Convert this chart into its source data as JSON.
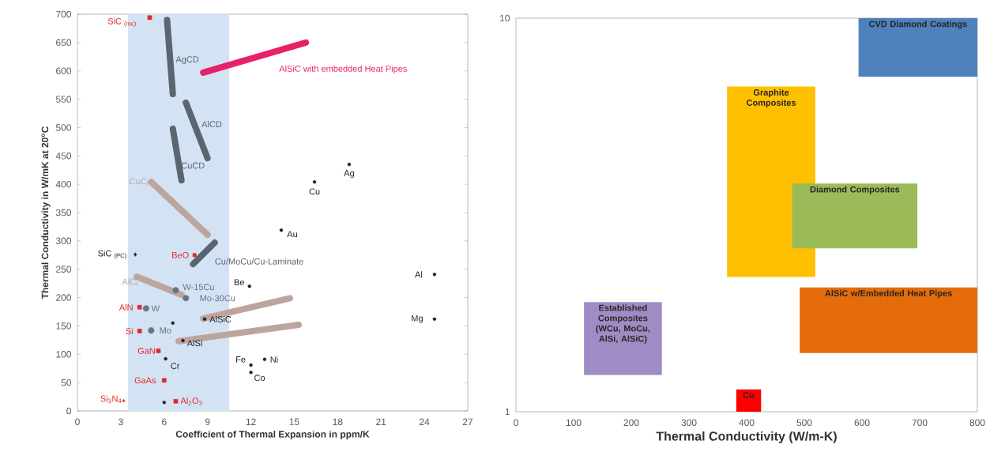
{
  "chart_data": [
    {
      "type": "scatter",
      "xlabel": "Coefficient of Thermal Expansion in ppm/K",
      "ylabel": "Thermal Conductivity in W/mK at 20$^{o}$C",
      "xlim": [
        0,
        27
      ],
      "ylim": [
        0,
        700
      ],
      "xticks": [
        0,
        3,
        6,
        9,
        12,
        15,
        18,
        21,
        24,
        27
      ],
      "yticks": [
        0,
        50,
        100,
        150,
        200,
        250,
        300,
        350,
        400,
        450,
        500,
        550,
        600,
        650,
        700
      ],
      "bands": [
        {
          "axis": "x",
          "from": 3.5,
          "to": 10.5,
          "color": "#d3e3f4"
        }
      ],
      "series": [
        {
          "type": "line",
          "name": "AgCD",
          "color": "#5b6570",
          "x": [
            6.2,
            6.6
          ],
          "values": [
            690,
            559
          ]
        },
        {
          "type": "line",
          "name": "AlSiC with embedded Heat Pipes",
          "color": "#e8206a",
          "x": [
            8.7,
            15.8
          ],
          "values": [
            597,
            650
          ]
        },
        {
          "type": "line",
          "name": "AlCD",
          "color": "#5b6570",
          "x": [
            7.5,
            9.0
          ],
          "values": [
            544,
            446
          ]
        },
        {
          "type": "line",
          "name": "CuCD",
          "color": "#5b6570",
          "x": [
            6.6,
            7.2
          ],
          "values": [
            498,
            407
          ]
        },
        {
          "type": "line",
          "name": "CuC$_{f}$",
          "color": "#bda59d",
          "x": [
            5.1,
            9.0
          ],
          "values": [
            404,
            311
          ]
        },
        {
          "type": "line",
          "name": "Cu/MoCu/Cu-Laminate",
          "color": "#5b6570",
          "x": [
            8.0,
            9.5
          ],
          "values": [
            259,
            297
          ]
        },
        {
          "type": "line",
          "name": "AlC$_{f}$",
          "color": "#bda59d",
          "x": [
            4.1,
            7.2
          ],
          "values": [
            237,
            205
          ]
        },
        {
          "type": "line",
          "color": "#bda59d",
          "x": [
            8.7,
            14.7
          ],
          "values": [
            163,
            199
          ]
        },
        {
          "type": "line",
          "color": "#bda59d",
          "x": [
            7.0,
            15.3
          ],
          "values": [
            123,
            152
          ]
        },
        {
          "type": "scatter",
          "name": "SiC $_{(mc)}$",
          "marker": "square",
          "color": "#e02828",
          "x": [
            5.0
          ],
          "values": [
            694
          ]
        },
        {
          "type": "scatter",
          "name": "BeO",
          "marker": "square",
          "color": "#e02828",
          "x": [
            8.1
          ],
          "values": [
            275
          ]
        },
        {
          "type": "scatter",
          "name": "AlN",
          "marker": "square",
          "color": "#e02828",
          "x": [
            4.3
          ],
          "values": [
            183
          ]
        },
        {
          "type": "scatter",
          "name": "Si",
          "marker": "square",
          "color": "#e02828",
          "x": [
            4.3
          ],
          "values": [
            141
          ]
        },
        {
          "type": "scatter",
          "name": "GaN",
          "marker": "square",
          "color": "#e02828",
          "x": [
            5.6
          ],
          "values": [
            106
          ]
        },
        {
          "type": "scatter",
          "name": "GaAs",
          "marker": "square",
          "color": "#e02828",
          "x": [
            6.0
          ],
          "values": [
            54
          ]
        },
        {
          "type": "scatter",
          "name": "Al$_{2}$O$_{3}$",
          "marker": "square",
          "color": "#e02828",
          "x": [
            6.8
          ],
          "values": [
            17
          ]
        },
        {
          "type": "scatter",
          "name": "Si$_{3}$N$_{4}$",
          "marker": "triangle",
          "color": "#e02828",
          "x": [
            3.2
          ],
          "values": [
            18
          ]
        },
        {
          "type": "scatter",
          "name": "SiC $_{(PC)}$",
          "marker": "diamond",
          "color": "#222222",
          "x": [
            4.0
          ],
          "values": [
            276
          ]
        },
        {
          "type": "scatter",
          "name": "W-15Cu",
          "marker": "circle",
          "color": "#6a7480",
          "x": [
            6.8
          ],
          "values": [
            213
          ]
        },
        {
          "type": "scatter",
          "name": "Mo-30Cu",
          "marker": "circle",
          "color": "#6a7480",
          "x": [
            7.5
          ],
          "values": [
            199
          ]
        },
        {
          "type": "scatter",
          "name": "W",
          "marker": "circle",
          "color": "#6a7480",
          "x": [
            4.75
          ],
          "values": [
            181
          ]
        },
        {
          "type": "scatter",
          "name": "Mo",
          "marker": "circle",
          "color": "#6a7480",
          "x": [
            5.1
          ],
          "values": [
            142
          ]
        },
        {
          "type": "scatter",
          "name": "Cu",
          "marker": "circle",
          "color": "#222222",
          "x": [
            16.4
          ],
          "values": [
            404
          ]
        },
        {
          "type": "scatter",
          "name": "Ag",
          "marker": "circle",
          "color": "#222222",
          "x": [
            18.8
          ],
          "values": [
            435
          ]
        },
        {
          "type": "scatter",
          "name": "Au",
          "marker": "circle",
          "color": "#222222",
          "x": [
            14.1
          ],
          "values": [
            319
          ]
        },
        {
          "type": "scatter",
          "name": "Al",
          "marker": "circle",
          "color": "#222222",
          "x": [
            24.7
          ],
          "values": [
            241
          ]
        },
        {
          "type": "scatter",
          "name": "Be",
          "marker": "circle",
          "color": "#222222",
          "x": [
            11.9
          ],
          "values": [
            220
          ]
        },
        {
          "type": "scatter",
          "name": "Mg",
          "marker": "circle",
          "color": "#222222",
          "x": [
            24.7
          ],
          "values": [
            162
          ]
        },
        {
          "type": "scatter",
          "name": "AlSiC",
          "marker": "circle",
          "color": "#222222",
          "x": [
            8.8
          ],
          "values": [
            162
          ]
        },
        {
          "type": "scatter",
          "marker": "circle",
          "color": "#222222",
          "x": [
            6.6
          ],
          "values": [
            155
          ]
        },
        {
          "type": "scatter",
          "name": "AlSi",
          "marker": "circle",
          "color": "#222222",
          "x": [
            7.3
          ],
          "values": [
            124
          ]
        },
        {
          "type": "scatter",
          "name": "Cr",
          "marker": "circle",
          "color": "#222222",
          "x": [
            6.1
          ],
          "values": [
            92
          ]
        },
        {
          "type": "scatter",
          "name": "Ni",
          "marker": "circle",
          "color": "#222222",
          "x": [
            12.95
          ],
          "values": [
            91
          ]
        },
        {
          "type": "scatter",
          "name": "Fe",
          "marker": "circle",
          "color": "#222222",
          "x": [
            12.0
          ],
          "values": [
            81
          ]
        },
        {
          "type": "scatter",
          "name": "Co",
          "marker": "circle",
          "color": "#222222",
          "x": [
            12.0
          ],
          "values": [
            68
          ]
        },
        {
          "type": "scatter",
          "marker": "circle",
          "color": "#222222",
          "x": [
            6.0
          ],
          "values": [
            15
          ]
        }
      ]
    },
    {
      "type": "area",
      "xlabel": "Thermal Conductivity (W/m-K)",
      "log": "y",
      "xlim": [
        0,
        800
      ],
      "ylim": [
        1,
        10
      ],
      "xticks": [
        0,
        100,
        200,
        300,
        400,
        500,
        600,
        700,
        800
      ],
      "yticks": [
        1,
        10
      ],
      "series": [
        {
          "name": "CVD Diamond Coatings",
          "color": "#4f81bd",
          "x": [
            594,
            800,
            800,
            594
          ],
          "values": [
            7.1,
            7.1,
            10,
            10
          ]
        },
        {
          "name": "Graphite Composites",
          "color": "#ffc000",
          "x": [
            366,
            519,
            519,
            366
          ],
          "values": [
            2.2,
            2.2,
            6.7,
            6.7
          ]
        },
        {
          "name": "Diamond Composites",
          "color": "#9bbb59",
          "x": [
            479,
            696,
            696,
            479
          ],
          "values": [
            2.6,
            2.6,
            3.8,
            3.8
          ]
        },
        {
          "name": "AlSiC w/Embedded Heat Pipes",
          "color": "#e46c0a",
          "x": [
            492,
            800,
            800,
            492
          ],
          "values": [
            1.41,
            1.41,
            2.07,
            2.07
          ]
        },
        {
          "name": "Established Composites (WCu, MoCu, AlSi, AlSiC)",
          "color": "#a08cc4",
          "x": [
            118,
            253,
            253,
            118
          ],
          "values": [
            1.24,
            1.24,
            1.9,
            1.9
          ]
        },
        {
          "name": "Cu",
          "color": "#ff0000",
          "x": [
            382,
            425,
            425,
            382
          ],
          "values": [
            1.0,
            1.0,
            1.14,
            1.14
          ]
        }
      ]
    }
  ]
}
